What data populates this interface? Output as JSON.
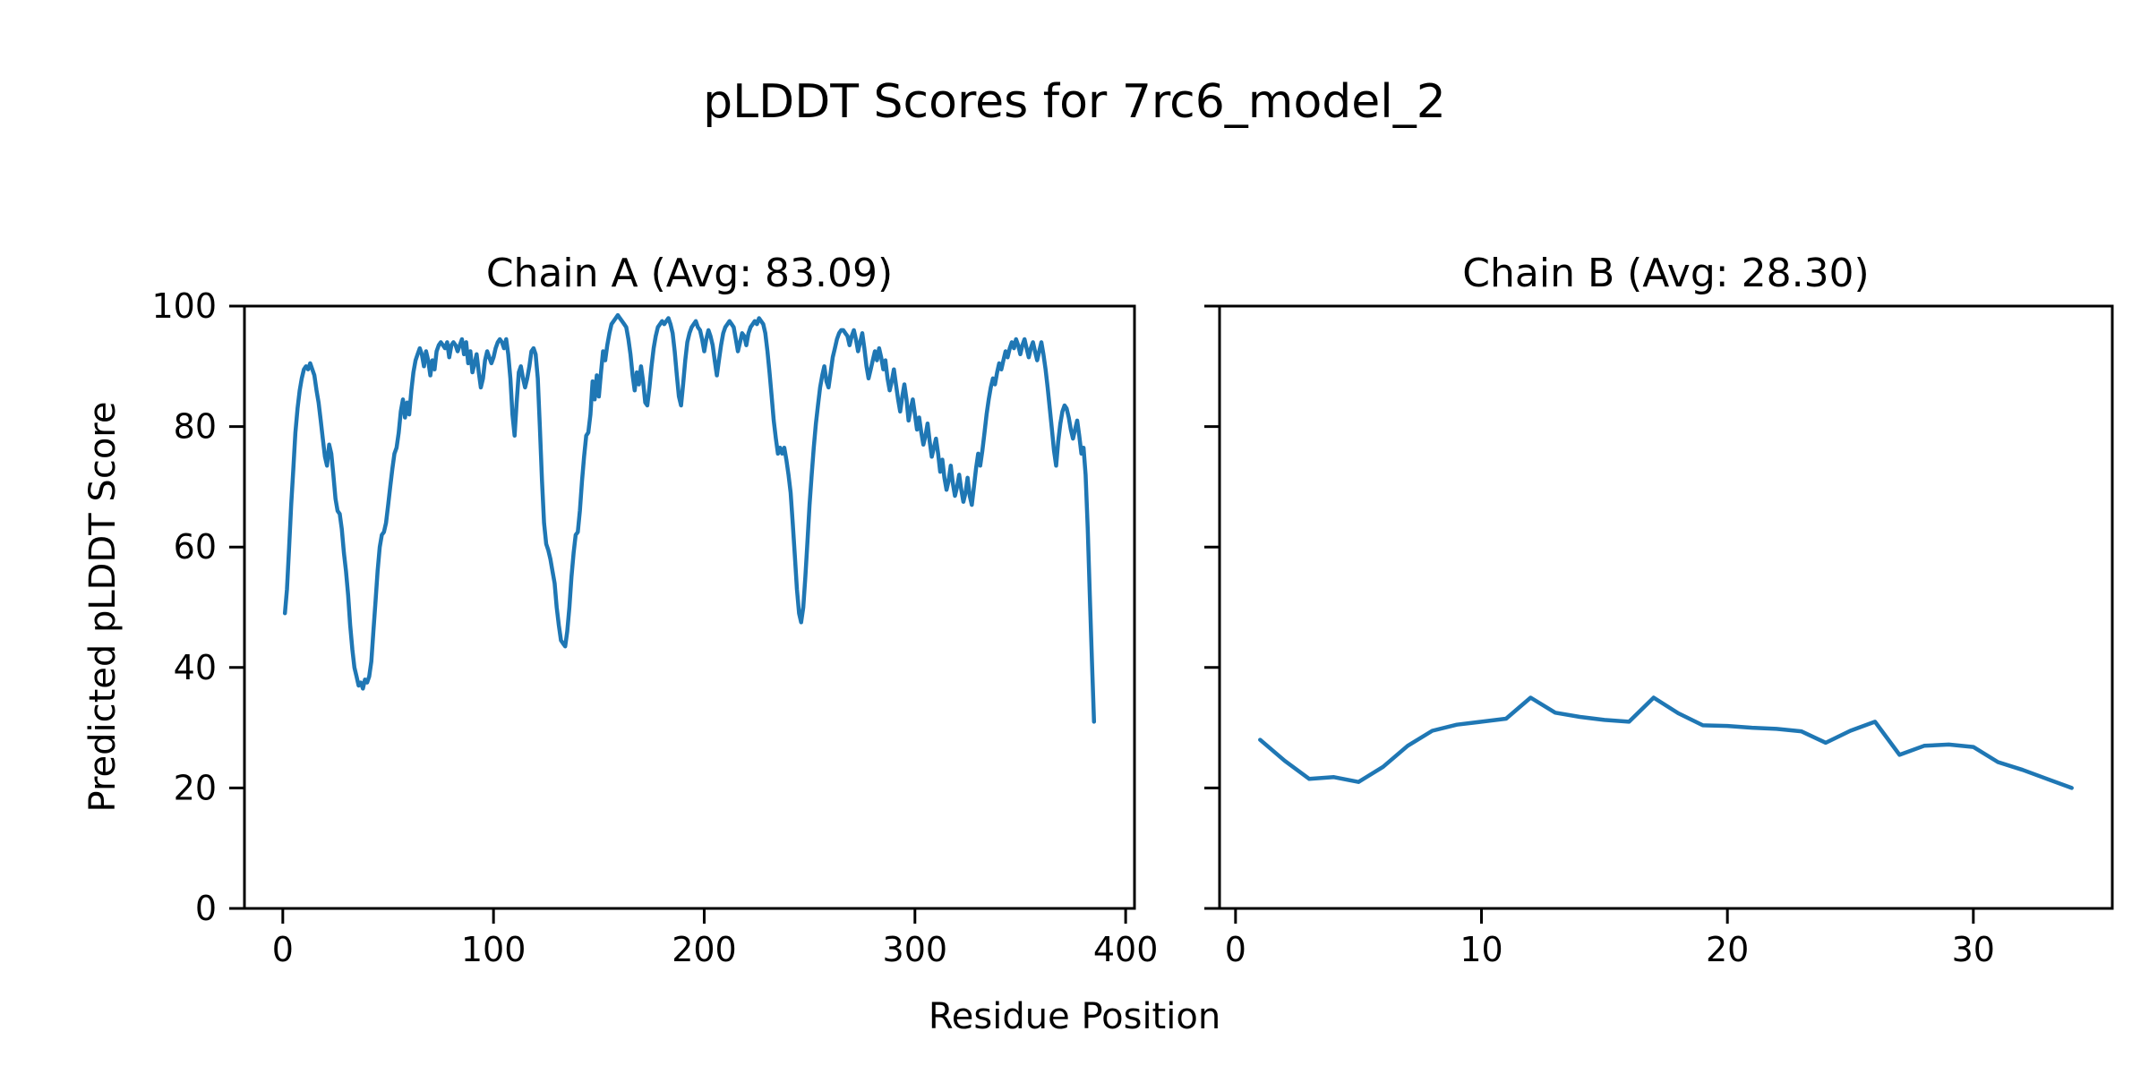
{
  "figure": {
    "title": "pLDDT Scores for 7rc6_model_2",
    "x_axis_label": "Residue Position",
    "y_axis_label": "Predicted pLDDT Score",
    "background_color": "#ffffff",
    "text_color": "#000000",
    "line_color": "#1f77b4"
  },
  "chart_data": [
    {
      "type": "line",
      "title": "Chain A (Avg: 83.09)",
      "chain": "A",
      "average": 83.09,
      "xlim": [
        -18.2,
        404.2
      ],
      "ylim": [
        0,
        100
      ],
      "xticks": [
        0,
        100,
        200,
        300,
        400
      ],
      "yticks": [
        0,
        20,
        40,
        60,
        80,
        100
      ],
      "show_ytick_labels": true,
      "grid": false,
      "series": [
        {
          "name": "chain-a-plddt-line",
          "color": "#1f77b4",
          "x_start": 1,
          "values": [
            49,
            53,
            60,
            67,
            73,
            79,
            83,
            86,
            88,
            89.5,
            90,
            89.5,
            90.5,
            89.5,
            88.5,
            86,
            84,
            81,
            78,
            75,
            73.5,
            77,
            75.5,
            72,
            68,
            66,
            65.5,
            63,
            59,
            56,
            52,
            47,
            43,
            40,
            38.5,
            37,
            37.5,
            36.5,
            38,
            37.5,
            38.5,
            41,
            46,
            51,
            56,
            60,
            62,
            62.5,
            64,
            67,
            70,
            73,
            75.5,
            76.5,
            79,
            82.5,
            84.5,
            81.5,
            84,
            82,
            86,
            89,
            91,
            92,
            93,
            92,
            90,
            92.5,
            91,
            88.5,
            91,
            89.5,
            92.5,
            93.5,
            94,
            93.5,
            93,
            94,
            91.5,
            93.5,
            94,
            93.5,
            92.5,
            93.5,
            94.5,
            92,
            94,
            90.5,
            92.5,
            89,
            90.5,
            92,
            89,
            86.5,
            88,
            91,
            92.5,
            91.5,
            90.5,
            91.5,
            93,
            94,
            94.5,
            94,
            93,
            94.5,
            92,
            88,
            82,
            78.5,
            84,
            89,
            90,
            88,
            86.5,
            88,
            90,
            92.5,
            93,
            92,
            88,
            80,
            71,
            64,
            60.5,
            59.5,
            58,
            56,
            54,
            50,
            47,
            44.5,
            44,
            43.5,
            46,
            50,
            55,
            59,
            62,
            62.5,
            66,
            71,
            75,
            78.5,
            79,
            82,
            87.5,
            84.5,
            88.5,
            85,
            89,
            92.5,
            91,
            93.5,
            95.5,
            97,
            97.5,
            98,
            98.5,
            98,
            97.5,
            97,
            96.5,
            94.5,
            92,
            88.5,
            86,
            89,
            87,
            90,
            87.5,
            84,
            83.5,
            86.5,
            90,
            93,
            95,
            96.5,
            97,
            97.5,
            97,
            97.5,
            98,
            97,
            95.5,
            92.5,
            88.5,
            85,
            83.5,
            87,
            91,
            94,
            95.5,
            96.5,
            97,
            97.5,
            96.5,
            96,
            94.5,
            92.5,
            94.5,
            96,
            95,
            93.5,
            91,
            88.5,
            91,
            93.5,
            95.5,
            96.5,
            97,
            97.5,
            97,
            96.5,
            94.5,
            92.5,
            94,
            95.5,
            95,
            93.5,
            95.5,
            96.5,
            97,
            97.5,
            97,
            98,
            97.5,
            97,
            95.5,
            92.5,
            89,
            85,
            81,
            78,
            75.5,
            76.5,
            75.5,
            76.5,
            74.5,
            72,
            69,
            64,
            58.5,
            53,
            49,
            47.5,
            50,
            55,
            61,
            67,
            72,
            76.5,
            80.5,
            83.5,
            86.5,
            88.5,
            90,
            87.5,
            86.5,
            89,
            91.5,
            93,
            94.5,
            95.5,
            96,
            96,
            95.5,
            95,
            93.5,
            95,
            96,
            94.5,
            92.5,
            94,
            95.5,
            93,
            90,
            88,
            89.5,
            91,
            92.5,
            91,
            93,
            91.5,
            89.5,
            91,
            88,
            86,
            87.5,
            89.5,
            87,
            84.5,
            82.5,
            85,
            87,
            84.5,
            81,
            83,
            84.5,
            82,
            79.5,
            81.5,
            79,
            77,
            78.5,
            80.5,
            77.5,
            75,
            76.5,
            78,
            75.5,
            72.5,
            74.5,
            71.5,
            69.5,
            71,
            73.5,
            70.5,
            68.5,
            70,
            72,
            69.5,
            67.5,
            69,
            71.5,
            68.5,
            67,
            70,
            73,
            75.5,
            73.5,
            76,
            79,
            82,
            84.5,
            86.5,
            88,
            87,
            89,
            90.5,
            89.5,
            91,
            92.5,
            91.5,
            93,
            94,
            93,
            94.5,
            93.5,
            92,
            93.5,
            94.5,
            93,
            91.5,
            93,
            94,
            92.5,
            91,
            92.5,
            94,
            92,
            89.5,
            86.5,
            83,
            79.5,
            76,
            73.5,
            77.5,
            80.5,
            82.5,
            83.5,
            83,
            81.5,
            79.5,
            78,
            79.5,
            81,
            78.5,
            75.5,
            76.5,
            72,
            63,
            52,
            41,
            31
          ]
        }
      ]
    },
    {
      "type": "line",
      "title": "Chain B (Avg: 28.30)",
      "chain": "B",
      "average": 28.3,
      "xlim": [
        -0.65,
        35.65
      ],
      "ylim": [
        0,
        100
      ],
      "xticks": [
        0,
        10,
        20,
        30
      ],
      "yticks": [
        0,
        20,
        40,
        60,
        80,
        100
      ],
      "show_ytick_labels": false,
      "grid": false,
      "series": [
        {
          "name": "chain-b-plddt-line",
          "color": "#1f77b4",
          "x_start": 1,
          "values": [
            28,
            24.5,
            21.5,
            21.8,
            21,
            23.5,
            27,
            29.5,
            30.5,
            31,
            31.5,
            35,
            32.5,
            31.8,
            31.3,
            31,
            35,
            32.4,
            30.4,
            30.3,
            30,
            29.8,
            29.4,
            27.5,
            29.5,
            31,
            25.5,
            27,
            27.2,
            26.8,
            24.3,
            23,
            21.5,
            20
          ]
        }
      ]
    }
  ]
}
